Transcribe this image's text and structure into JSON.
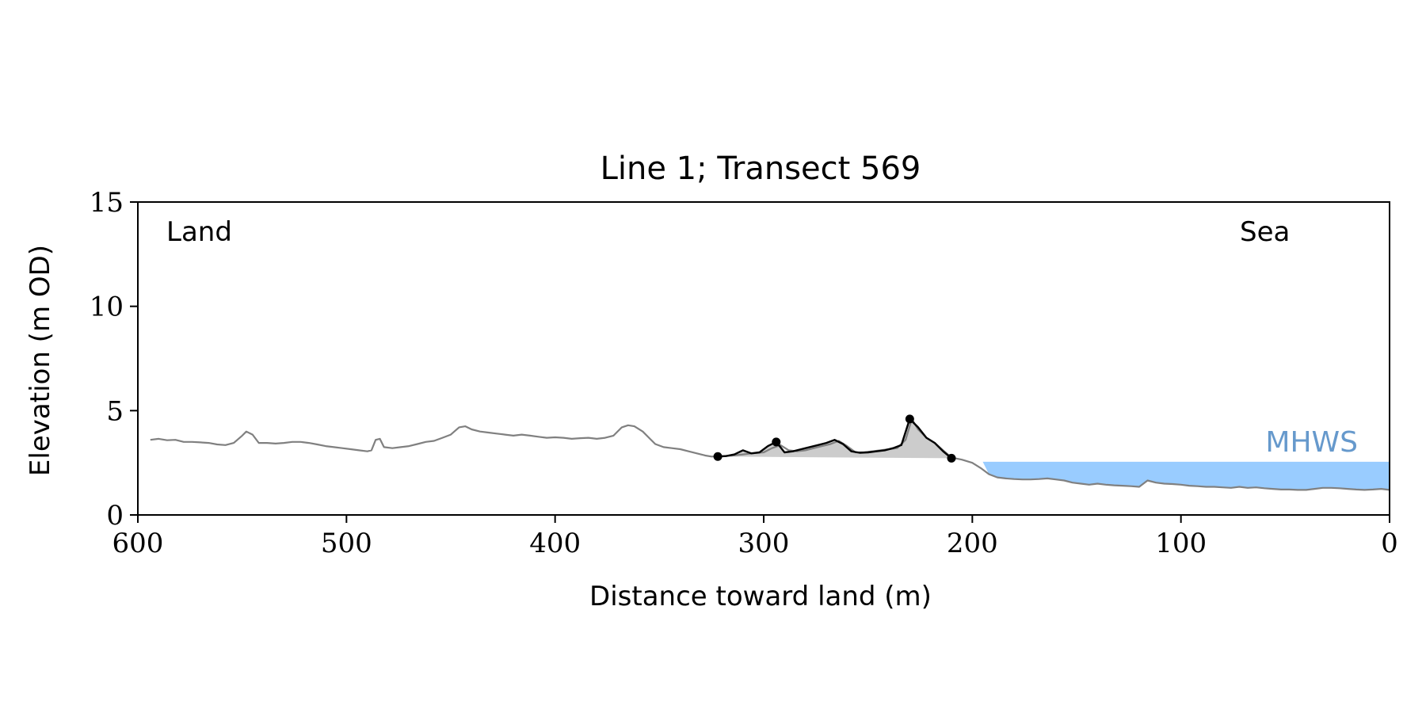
{
  "chart_data": {
    "type": "line",
    "title": "Line 1; Transect 569",
    "xlabel": "Distance toward land (m)",
    "ylabel": "Elevation (m OD)",
    "xlim": [
      600,
      0
    ],
    "ylim": [
      0,
      15
    ],
    "x_ticks": [
      600,
      500,
      400,
      300,
      200,
      100,
      0
    ],
    "y_ticks": [
      0,
      5,
      10,
      15
    ],
    "grid": false,
    "annotations": {
      "land_label": "Land",
      "sea_label": "Sea",
      "mhws_label": "MHWS"
    },
    "mhws": {
      "elevation": 2.55,
      "x_from": 195,
      "x_to": 0
    },
    "colors": {
      "profile": "#808080",
      "dune": "#000000",
      "dune_fill": "#cccccc",
      "mhws_fill": "#99ccff",
      "mhws_text": "#6699cc"
    },
    "series": [
      {
        "key": "profile",
        "x": [
          594,
          590,
          586,
          582,
          578,
          574,
          570,
          566,
          562,
          558,
          554,
          550,
          548,
          545,
          542,
          538,
          534,
          530,
          526,
          522,
          518,
          514,
          510,
          506,
          502,
          498,
          494,
          490,
          488,
          486,
          484,
          482,
          478,
          474,
          470,
          466,
          462,
          458,
          454,
          450,
          446,
          443,
          440,
          436,
          432,
          428,
          424,
          420,
          416,
          412,
          408,
          404,
          400,
          396,
          392,
          388,
          384,
          380,
          376,
          372,
          368,
          365,
          362,
          358,
          355,
          352,
          348,
          344,
          340,
          336,
          332,
          328,
          325,
          320,
          315,
          310,
          306,
          300,
          296,
          292,
          288,
          284,
          280,
          276,
          272,
          268,
          264,
          260,
          256,
          252,
          248,
          244,
          240,
          236,
          232,
          229,
          226,
          222,
          218,
          214,
          210,
          205,
          200,
          196,
          192,
          188,
          184,
          180,
          176,
          172,
          168,
          164,
          160,
          156,
          152,
          148,
          144,
          140,
          136,
          132,
          128,
          124,
          120,
          116,
          112,
          108,
          104,
          100,
          96,
          92,
          88,
          84,
          80,
          76,
          72,
          68,
          64,
          60,
          56,
          52,
          48,
          44,
          40,
          36,
          32,
          28,
          24,
          20,
          16,
          12,
          8,
          4,
          0
        ],
        "y": [
          3.6,
          3.65,
          3.58,
          3.6,
          3.5,
          3.5,
          3.48,
          3.45,
          3.38,
          3.35,
          3.45,
          3.8,
          4.0,
          3.85,
          3.45,
          3.45,
          3.42,
          3.45,
          3.5,
          3.5,
          3.45,
          3.38,
          3.3,
          3.25,
          3.2,
          3.15,
          3.1,
          3.05,
          3.1,
          3.6,
          3.65,
          3.25,
          3.2,
          3.25,
          3.3,
          3.4,
          3.5,
          3.55,
          3.7,
          3.85,
          4.2,
          4.25,
          4.1,
          4.0,
          3.95,
          3.9,
          3.85,
          3.8,
          3.85,
          3.8,
          3.75,
          3.7,
          3.72,
          3.7,
          3.65,
          3.68,
          3.7,
          3.65,
          3.7,
          3.8,
          4.2,
          4.3,
          4.25,
          4.0,
          3.7,
          3.4,
          3.25,
          3.2,
          3.15,
          3.05,
          2.95,
          2.85,
          2.8,
          2.82,
          2.85,
          2.9,
          2.95,
          3.0,
          3.2,
          3.35,
          3.1,
          3.05,
          3.1,
          3.2,
          3.3,
          3.4,
          3.55,
          3.3,
          3.0,
          3.0,
          3.05,
          3.1,
          3.15,
          3.2,
          3.6,
          4.6,
          4.1,
          3.7,
          3.45,
          3.1,
          2.75,
          2.65,
          2.5,
          2.25,
          1.95,
          1.8,
          1.75,
          1.72,
          1.7,
          1.7,
          1.72,
          1.75,
          1.7,
          1.65,
          1.55,
          1.5,
          1.45,
          1.5,
          1.45,
          1.42,
          1.4,
          1.38,
          1.35,
          1.65,
          1.55,
          1.5,
          1.48,
          1.45,
          1.4,
          1.38,
          1.35,
          1.35,
          1.32,
          1.3,
          1.35,
          1.3,
          1.32,
          1.28,
          1.25,
          1.22,
          1.22,
          1.2,
          1.2,
          1.25,
          1.3,
          1.3,
          1.28,
          1.25,
          1.22,
          1.2,
          1.22,
          1.25,
          1.2
        ]
      },
      {
        "key": "dune",
        "x": [
          322,
          318,
          314,
          310,
          306,
          302,
          298,
          294,
          290,
          286,
          282,
          278,
          274,
          270,
          266,
          262,
          258,
          254,
          250,
          246,
          242,
          238,
          234,
          230,
          226,
          222,
          218,
          214,
          210
        ],
        "y": [
          2.8,
          2.82,
          2.9,
          3.1,
          2.95,
          3.0,
          3.3,
          3.5,
          3.0,
          3.05,
          3.15,
          3.25,
          3.35,
          3.45,
          3.6,
          3.4,
          3.05,
          2.98,
          3.0,
          3.05,
          3.1,
          3.2,
          3.35,
          4.6,
          4.2,
          3.7,
          3.45,
          3.05,
          2.72
        ]
      }
    ],
    "dune_base": {
      "x": [
        322,
        210
      ],
      "y": [
        2.8,
        2.72
      ]
    },
    "dune_markers": [
      {
        "x": 322,
        "y": 2.8
      },
      {
        "x": 294,
        "y": 3.5
      },
      {
        "x": 230,
        "y": 4.6
      },
      {
        "x": 210,
        "y": 2.72
      }
    ]
  }
}
